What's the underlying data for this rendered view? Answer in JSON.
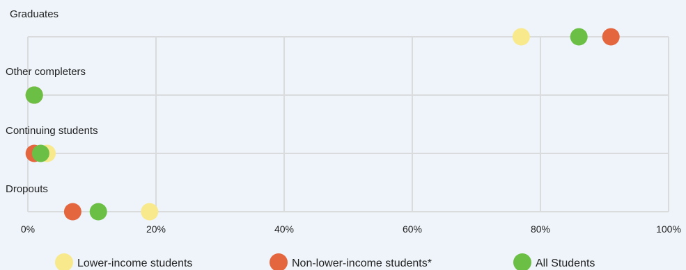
{
  "chart_data": {
    "type": "scatter",
    "title": "",
    "xlabel": "",
    "ylabel": "",
    "xlim": [
      0,
      100
    ],
    "x_ticks": [
      "0%",
      "20%",
      "40%",
      "60%",
      "80%",
      "100%"
    ],
    "categories": [
      "Graduates",
      "Other completers",
      "Continuing students",
      "Dropouts"
    ],
    "series": [
      {
        "name": "Lower-income students",
        "color": "#f8e98c",
        "values": [
          77,
          1,
          3,
          19
        ]
      },
      {
        "name": "Non-lower-income students*",
        "color": "#e4663f",
        "values": [
          91,
          1,
          1,
          7
        ]
      },
      {
        "name": "All Students",
        "color": "#6bbf45",
        "values": [
          86,
          1,
          2,
          11
        ]
      }
    ],
    "grid": true,
    "legend_position": "bottom"
  }
}
